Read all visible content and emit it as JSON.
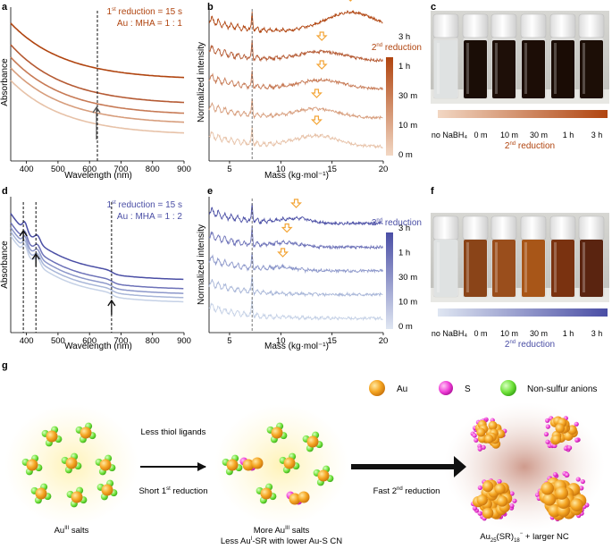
{
  "panel_labels": {
    "a": "a",
    "b": "b",
    "c": "c",
    "d": "d",
    "e": "e",
    "f": "f",
    "g": "g"
  },
  "chart_data": [
    {
      "panel": "a",
      "type": "line",
      "xlabel": "Wavelength (nm)",
      "ylabel": "Absorbance",
      "xlim": [
        350,
        900
      ],
      "xticks": [
        "400",
        "500",
        "600",
        "700",
        "800",
        "900"
      ],
      "annotation_line1_pre": "1",
      "annotation_line1_sup": "st",
      "annotation_line1_post": " reduction = 15 s",
      "annotation_line2": "Au : MHA = 1 : 1",
      "marker_wavelength": 625,
      "series_colors": [
        "#e7c2a8",
        "#d79d7c",
        "#c77a55",
        "#b55a33",
        "#b0440f"
      ]
    },
    {
      "panel": "b",
      "type": "line",
      "xlabel": "Mass (kg·mol⁻¹)",
      "ylabel": "Normalized intensity",
      "xlim": [
        3,
        20
      ],
      "xticks": [
        "5",
        "10",
        "15",
        "20"
      ],
      "marker_mass": 7.2,
      "legend_title_pre": "2",
      "legend_title_sup": "nd",
      "legend_title_post": " reduction",
      "series": [
        "0 m",
        "10 m",
        "30 m",
        "1 h",
        "3 h"
      ],
      "series_colors": [
        "#e7c2a8",
        "#d79d7c",
        "#c77a55",
        "#b55a33",
        "#b0440f"
      ]
    },
    {
      "panel": "d",
      "type": "line",
      "xlabel": "Wavelength (nm)",
      "ylabel": "Absorbance",
      "xlim": [
        350,
        900
      ],
      "xticks": [
        "400",
        "500",
        "600",
        "700",
        "800",
        "900"
      ],
      "annotation_line1_pre": "1",
      "annotation_line1_sup": "st",
      "annotation_line1_post": " reduction = 15 s",
      "annotation_line2": "Au : MHA = 1 : 2",
      "marker_wavelengths": [
        390,
        430,
        670
      ],
      "series_colors": [
        "#c5d1e6",
        "#a8b6d8",
        "#8c97ca",
        "#6d72b8",
        "#4a4ea5"
      ]
    },
    {
      "panel": "e",
      "type": "line",
      "xlabel": "Mass (kg·mol⁻¹)",
      "ylabel": "Normalized intensity",
      "xlim": [
        3,
        20
      ],
      "xticks": [
        "5",
        "10",
        "15",
        "20"
      ],
      "marker_mass": 7.2,
      "legend_title_pre": "2",
      "legend_title_sup": "nd",
      "legend_title_post": " reduction",
      "series": [
        "0 m",
        "10 m",
        "30 m",
        "1 h",
        "3 h"
      ],
      "series_colors": [
        "#c5d1e6",
        "#a8b6d8",
        "#8c97ca",
        "#6d72b8",
        "#4a4ea5"
      ]
    }
  ],
  "photo_c": {
    "first_label": "no NaBH₄",
    "labels": [
      "0 m",
      "10 m",
      "30 m",
      "1 h",
      "3 h"
    ],
    "caption_pre": "2",
    "caption_sup": "nd",
    "caption_post": " reduction",
    "accent": "#b0440f"
  },
  "photo_f": {
    "first_label": "no NaBH₄",
    "labels": [
      "0 m",
      "10 m",
      "30 m",
      "1 h",
      "3 h"
    ],
    "caption_pre": "2",
    "caption_sup": "nd",
    "caption_post": " reduction",
    "accent": "#4a4ea5"
  },
  "scheme": {
    "legend": {
      "au": "Au",
      "s": "S",
      "anion": "Non-sulfur anions"
    },
    "arrow1_top": "Less thiol ligands",
    "arrow1_bottom_pre": "Short 1",
    "arrow1_bottom_sup": "st",
    "arrow1_bottom_post": " reduction",
    "arrow2_bottom_pre": "Fast 2",
    "arrow2_bottom_sup": "nd",
    "arrow2_bottom_post": " reduction",
    "stage1_pre": "Au",
    "stage1_sup": "III",
    "stage1_post": " salts",
    "stage2_line1_pre": "More Au",
    "stage2_line1_sup": "III",
    "stage2_line1_post": " salts",
    "stage2_line2_pre": "Less Au",
    "stage2_line2_sup": "I",
    "stage2_line2_post": "-SR with lower Au-S CN",
    "stage3_pre": "Au",
    "stage3_sub1": "25",
    "stage3_mid": "(SR)",
    "stage3_sub2": "18",
    "stage3_sup": "−",
    "stage3_post": " + larger NC"
  }
}
